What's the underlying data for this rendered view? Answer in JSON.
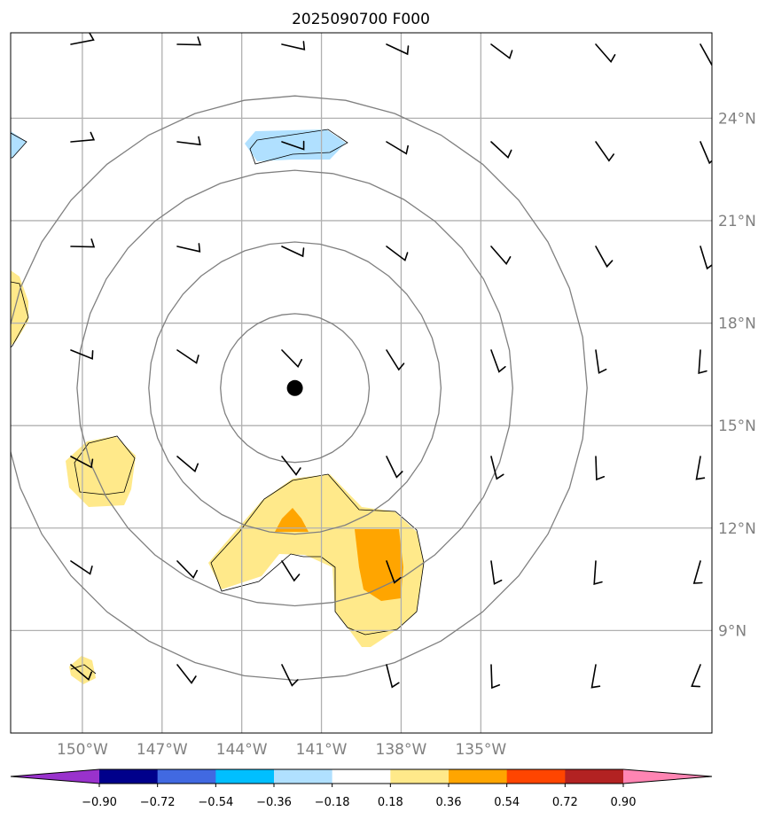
{
  "title": "2025090700 F000",
  "map": {
    "lon_range": [
      -152.7,
      -126.3
    ],
    "lat_range": [
      6.0,
      26.5
    ],
    "lon_ticks": [
      {
        "value": -150,
        "label": "150°W"
      },
      {
        "value": -147,
        "label": "147°W"
      },
      {
        "value": -144,
        "label": "144°W"
      },
      {
        "value": -141,
        "label": "141°W"
      },
      {
        "value": -138,
        "label": "138°W"
      },
      {
        "value": -135,
        "label": "135°W"
      }
    ],
    "lat_ticks": [
      {
        "value": 9,
        "label": "9°N"
      },
      {
        "value": 12,
        "label": "12°N"
      },
      {
        "value": 15,
        "label": "15°N"
      },
      {
        "value": 18,
        "label": "18°N"
      },
      {
        "value": 21,
        "label": "21°N"
      },
      {
        "value": 24,
        "label": "24°N"
      }
    ],
    "center": {
      "lon": -142.0,
      "lat": 16.1
    },
    "range_rings_deg": [
      2.8,
      5.5,
      8.2,
      11.0
    ],
    "grid": true
  },
  "colorbar": {
    "colors": [
      "#9932cc",
      "#00008b",
      "#4169e1",
      "#00bfff",
      "#b0e0ff",
      "#ffffff",
      "#ffe98a",
      "#ffa500",
      "#ff4500",
      "#b22222",
      "#ff85b3"
    ],
    "labels": [
      "−0.90",
      "−0.72",
      "−0.54",
      "−0.36",
      "−0.18",
      "0.18",
      "0.36",
      "0.54",
      "0.72",
      "0.90"
    ]
  },
  "colors": {
    "grid": "#b0b0b0",
    "ring": "#808080",
    "light_blue": "#b0e0ff",
    "light_yellow": "#ffe98a",
    "orange": "#ffa500"
  }
}
